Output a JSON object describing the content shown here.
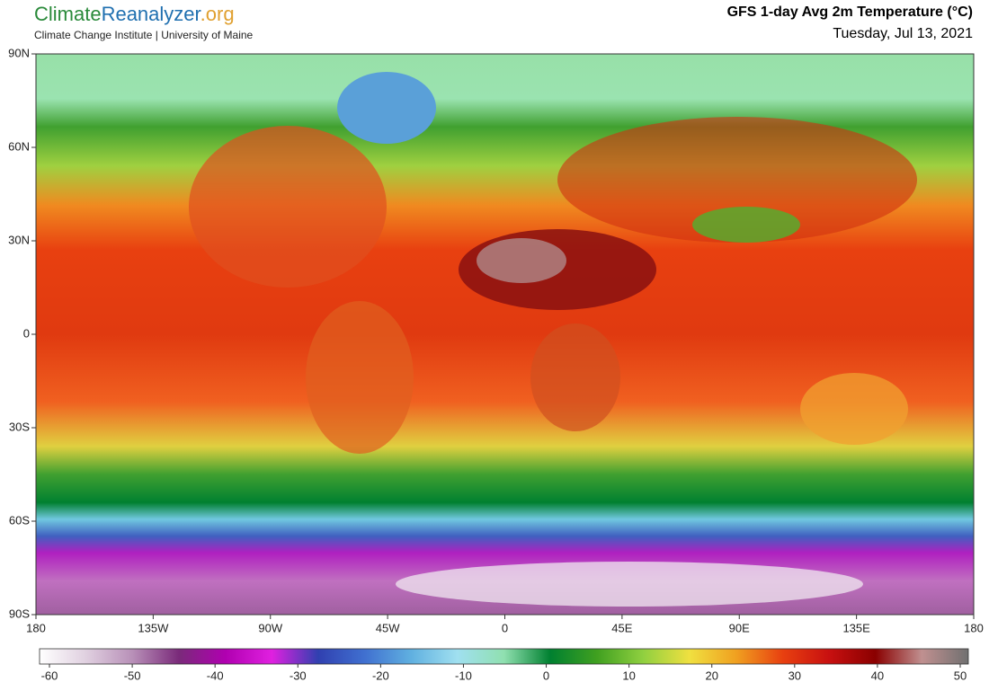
{
  "header": {
    "logo": {
      "part1": "Climate",
      "part2": "Reanalyzer",
      "part3": ".org"
    },
    "institution": "Climate Change Institute | University of Maine",
    "title": "GFS 1-day Avg 2m Temperature (°C)",
    "date": "Tuesday, Jul 13, 2021"
  },
  "map": {
    "lat_ticks": [
      {
        "value": 90,
        "label": "90N"
      },
      {
        "value": 60,
        "label": "60N"
      },
      {
        "value": 30,
        "label": "30N"
      },
      0,
      {
        "value": -30,
        "label": "30S"
      },
      {
        "value": -60,
        "label": "60S"
      },
      {
        "value": -90,
        "label": "90S"
      }
    ],
    "lat_range": [
      -90,
      90
    ],
    "lon_ticks": [
      {
        "value": -180,
        "label": "180"
      },
      {
        "value": -135,
        "label": "135W"
      },
      {
        "value": -90,
        "label": "90W"
      },
      {
        "value": -45,
        "label": "45W"
      },
      0,
      {
        "value": 45,
        "label": "45E"
      },
      {
        "value": 90,
        "label": "90E"
      },
      {
        "value": 135,
        "label": "135E"
      },
      180
    ],
    "lon_range": [
      -180,
      180
    ]
  },
  "colorbar": {
    "range": [
      -60,
      50
    ],
    "ticks": [
      -60,
      -50,
      -40,
      -30,
      -20,
      -10,
      0,
      10,
      20,
      30,
      40,
      50
    ],
    "colors": [
      "#ffffff",
      "#e0d0e0",
      "#b890b8",
      "#7a2a7a",
      "#b000b0",
      "#e020e0",
      "#3040b0",
      "#4070d0",
      "#60b0e0",
      "#a0e0f0",
      "#90e0b0",
      "#008030",
      "#40a020",
      "#90d040",
      "#f0e040",
      "#f0a020",
      "#e84010",
      "#c81010",
      "#8a0000",
      "#c09090",
      "#707070"
    ]
  }
}
